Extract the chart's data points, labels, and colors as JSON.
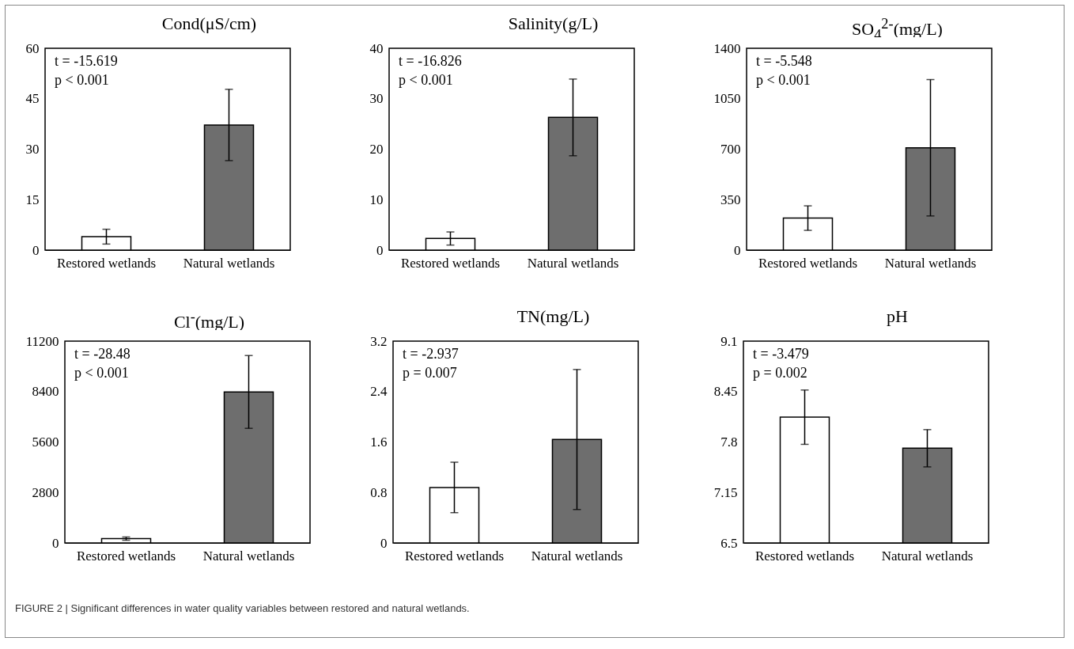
{
  "chart_data": [
    {
      "type": "bar",
      "title": "Cond(μS/cm)",
      "categories": [
        "Restored wetlands",
        "Natural wetlands"
      ],
      "values": [
        4.0,
        37.2
      ],
      "errors": [
        2.2,
        10.6
      ],
      "colors": [
        "#ffffff",
        "#6e6e6e"
      ],
      "ylim": [
        0,
        60
      ],
      "yticks": [
        0,
        15,
        30,
        45,
        60
      ],
      "annotations": [
        "t = -15.619",
        "p < 0.001"
      ]
    },
    {
      "type": "bar",
      "title": "Salinity(g/L)",
      "categories": [
        "Restored wetlands",
        "Natural wetlands"
      ],
      "values": [
        2.3,
        26.3
      ],
      "errors": [
        1.3,
        7.6
      ],
      "colors": [
        "#ffffff",
        "#6e6e6e"
      ],
      "ylim": [
        0,
        40
      ],
      "yticks": [
        0,
        10,
        20,
        30,
        40
      ],
      "annotations": [
        "t = -16.826",
        "p < 0.001"
      ]
    },
    {
      "type": "bar",
      "title": "SO$_{4}$$^{2-}$(mg/L)",
      "categories": [
        "Restored wetlands",
        "Natural wetlands"
      ],
      "values": [
        222,
        710
      ],
      "errors": [
        85,
        473
      ],
      "colors": [
        "#ffffff",
        "#6e6e6e"
      ],
      "ylim": [
        0,
        1400
      ],
      "yticks": [
        0,
        350,
        700,
        1050,
        1400
      ],
      "annotations": [
        "t = -5.548",
        "p < 0.001"
      ]
    },
    {
      "type": "bar",
      "title": "Cl$^{-}$(mg/L)",
      "categories": [
        "Restored wetlands",
        "Natural wetlands"
      ],
      "values": [
        240,
        8380
      ],
      "errors": [
        90,
        2020
      ],
      "colors": [
        "#ffffff",
        "#6e6e6e"
      ],
      "ylim": [
        0,
        11200
      ],
      "yticks": [
        0,
        2800,
        5600,
        8400,
        11200
      ],
      "annotations": [
        "t = -28.48",
        "p < 0.001"
      ]
    },
    {
      "type": "bar",
      "title": "TN(mg/L)",
      "categories": [
        "Restored wetlands",
        "Natural wetlands"
      ],
      "values": [
        0.88,
        1.64
      ],
      "errors": [
        0.4,
        1.11
      ],
      "colors": [
        "#ffffff",
        "#6e6e6e"
      ],
      "ylim": [
        0,
        3.2
      ],
      "yticks": [
        0,
        0.8,
        1.6,
        2.4,
        3.2
      ],
      "annotations": [
        "t = -2.937",
        "p = 0.007"
      ]
    },
    {
      "type": "bar",
      "title": "pH",
      "categories": [
        "Restored wetlands",
        "Natural wetlands"
      ],
      "values": [
        8.12,
        7.72
      ],
      "errors": [
        0.35,
        0.24
      ],
      "colors": [
        "#ffffff",
        "#6e6e6e"
      ],
      "ylim": [
        6.5,
        9.1
      ],
      "yticks": [
        6.5,
        7.15,
        7.8,
        8.45,
        9.1
      ],
      "annotations": [
        "t = -3.479",
        "p = 0.002",
        "FIGURE 2 | Significant differences in water quality variables between restored and natural wetlands."
      ]
    }
  ]
}
